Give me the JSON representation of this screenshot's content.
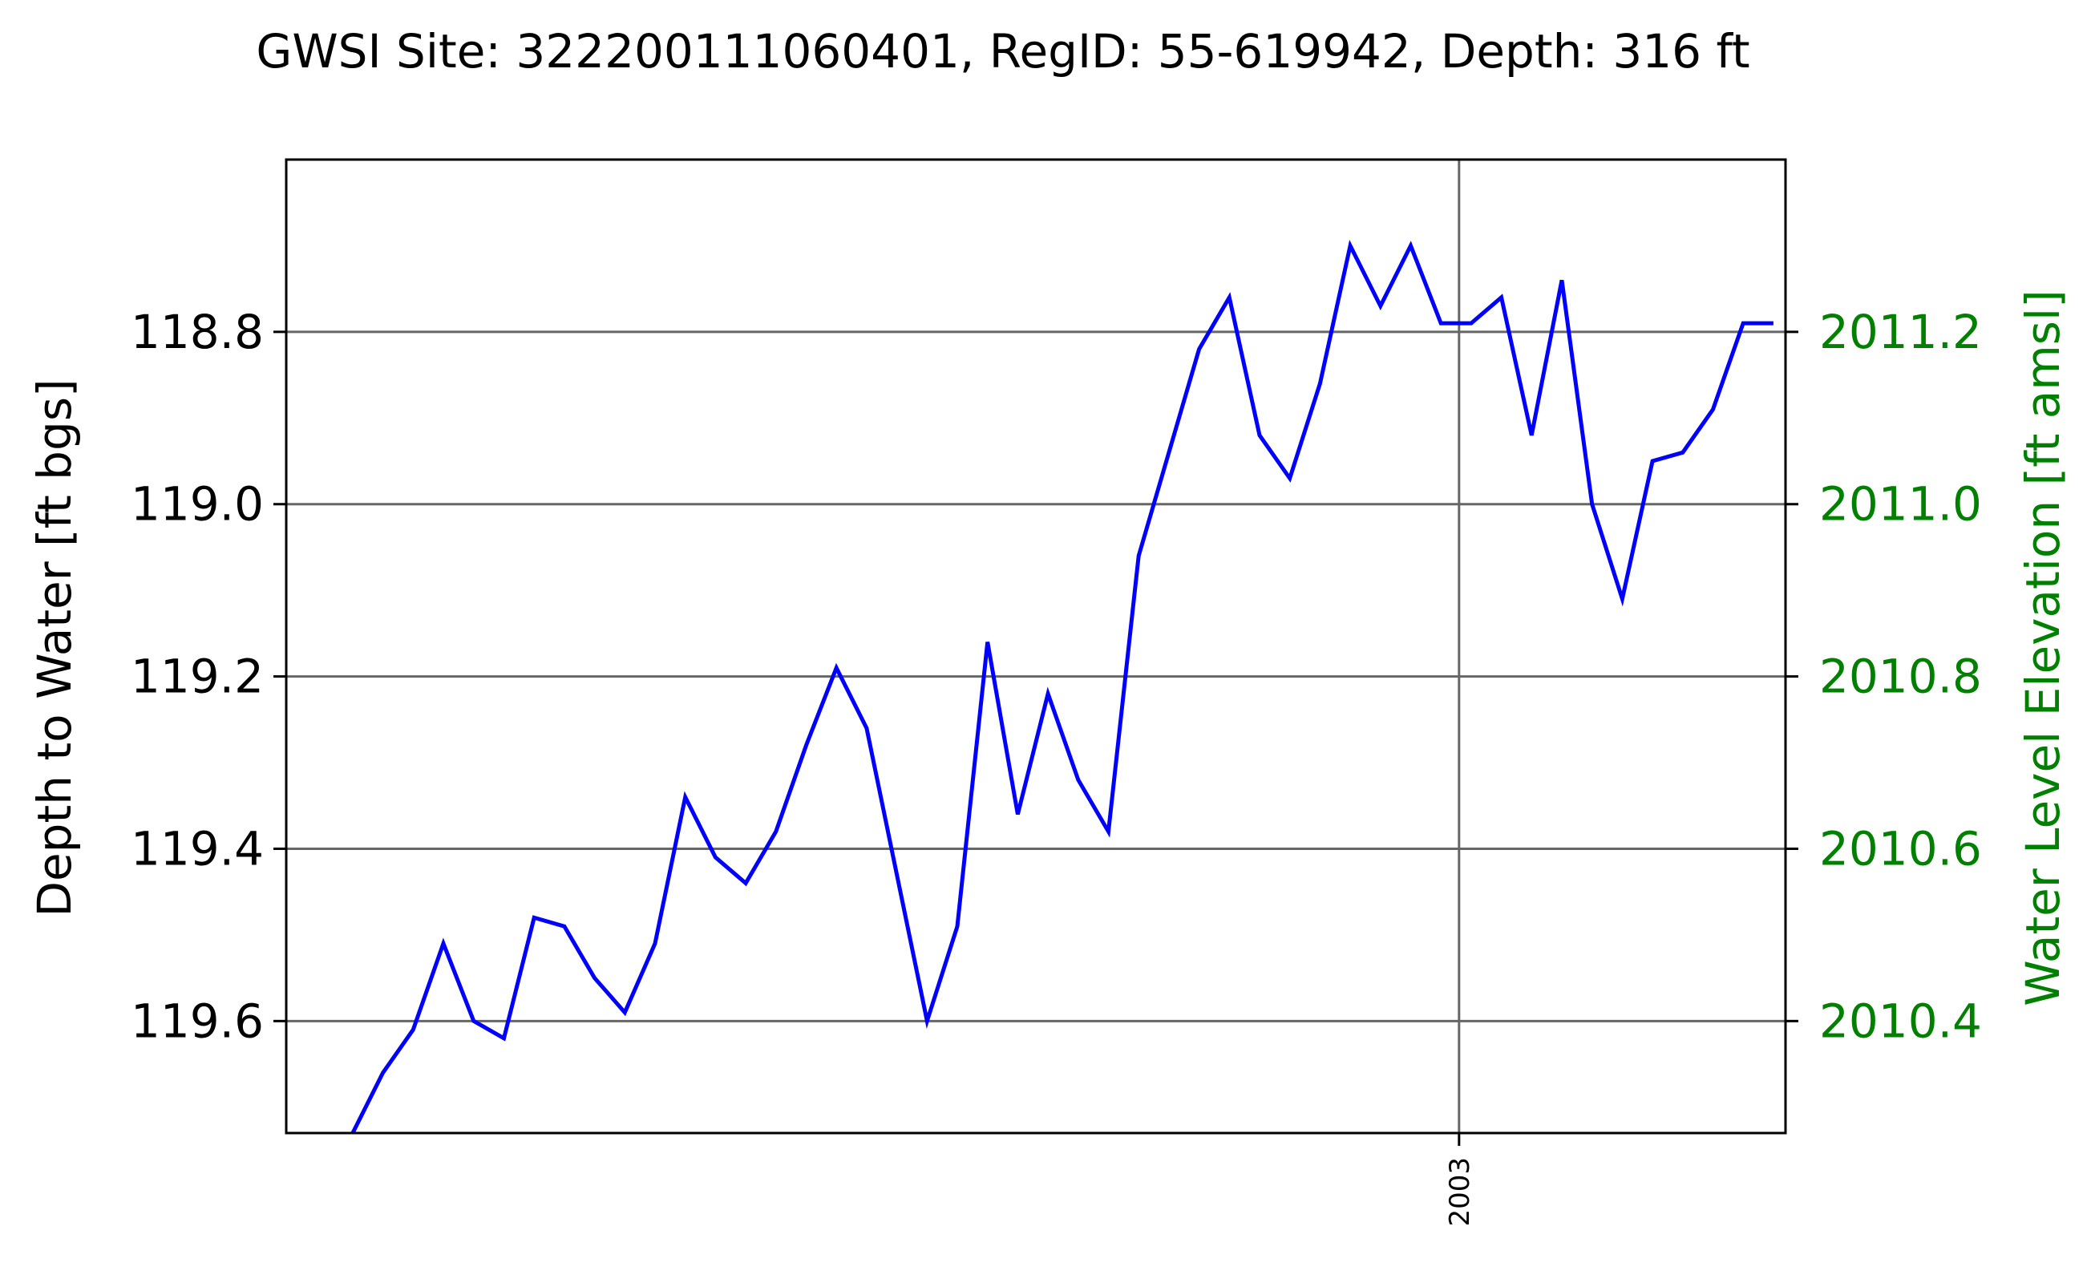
{
  "chart_data": {
    "type": "line",
    "title": "GWSI Site: 322200111060401, RegID: 55-619942, Depth: 316 ft",
    "xlabel": "",
    "ylabel": "Depth to Water [ft bgs]",
    "y2label": "Water Level Elevation [ft amsl]",
    "y_inverted": true,
    "ylim": [
      119.73,
      118.6
    ],
    "yticks": [
      "118.8",
      "119.0",
      "119.2",
      "119.4",
      "119.6"
    ],
    "y2ticks": [
      "2011.2",
      "2011.0",
      "2010.8",
      "2010.6",
      "2010.4"
    ],
    "xlim": [
      1999.12,
      2004.08
    ],
    "xticks": [
      {
        "value": 2003.0,
        "label": "2003"
      }
    ],
    "grid": true,
    "series": [
      {
        "color": "#0000ff",
        "x": [
          1999.34,
          1999.44,
          1999.54,
          1999.64,
          1999.74,
          1999.84,
          1999.94,
          2000.04,
          2000.14,
          2000.24,
          2000.34,
          2000.44,
          2000.54,
          2000.64,
          2000.74,
          2000.84,
          2000.94,
          2001.04,
          2001.14,
          2001.24,
          2001.34,
          2001.44,
          2001.54,
          2001.64,
          2001.74,
          2001.84,
          2001.94,
          2002.04,
          2002.14,
          2002.24,
          2002.34,
          2002.44,
          2002.54,
          2002.64,
          2002.74,
          2002.84,
          2002.94,
          2003.04,
          2003.14,
          2003.24,
          2003.34,
          2003.44,
          2003.54,
          2003.64,
          2003.74,
          2003.84,
          2003.94,
          2004.04
        ],
        "y": [
          119.73,
          119.66,
          119.61,
          119.51,
          119.6,
          119.62,
          119.48,
          119.49,
          119.55,
          119.59,
          119.51,
          119.34,
          119.41,
          119.44,
          119.38,
          119.28,
          119.19,
          119.26,
          119.43,
          119.6,
          119.49,
          119.16,
          119.36,
          119.22,
          119.32,
          119.38,
          119.06,
          118.94,
          118.82,
          118.76,
          118.92,
          118.97,
          118.86,
          118.7,
          118.77,
          118.7,
          118.79,
          118.79,
          118.76,
          118.92,
          118.74,
          119.0,
          119.11,
          118.95,
          118.94,
          118.89,
          118.79,
          118.79
        ]
      }
    ]
  },
  "colors": {
    "line": "#0000ff",
    "right_axis": "#008000",
    "grid": "#666666",
    "text": "#000000"
  }
}
